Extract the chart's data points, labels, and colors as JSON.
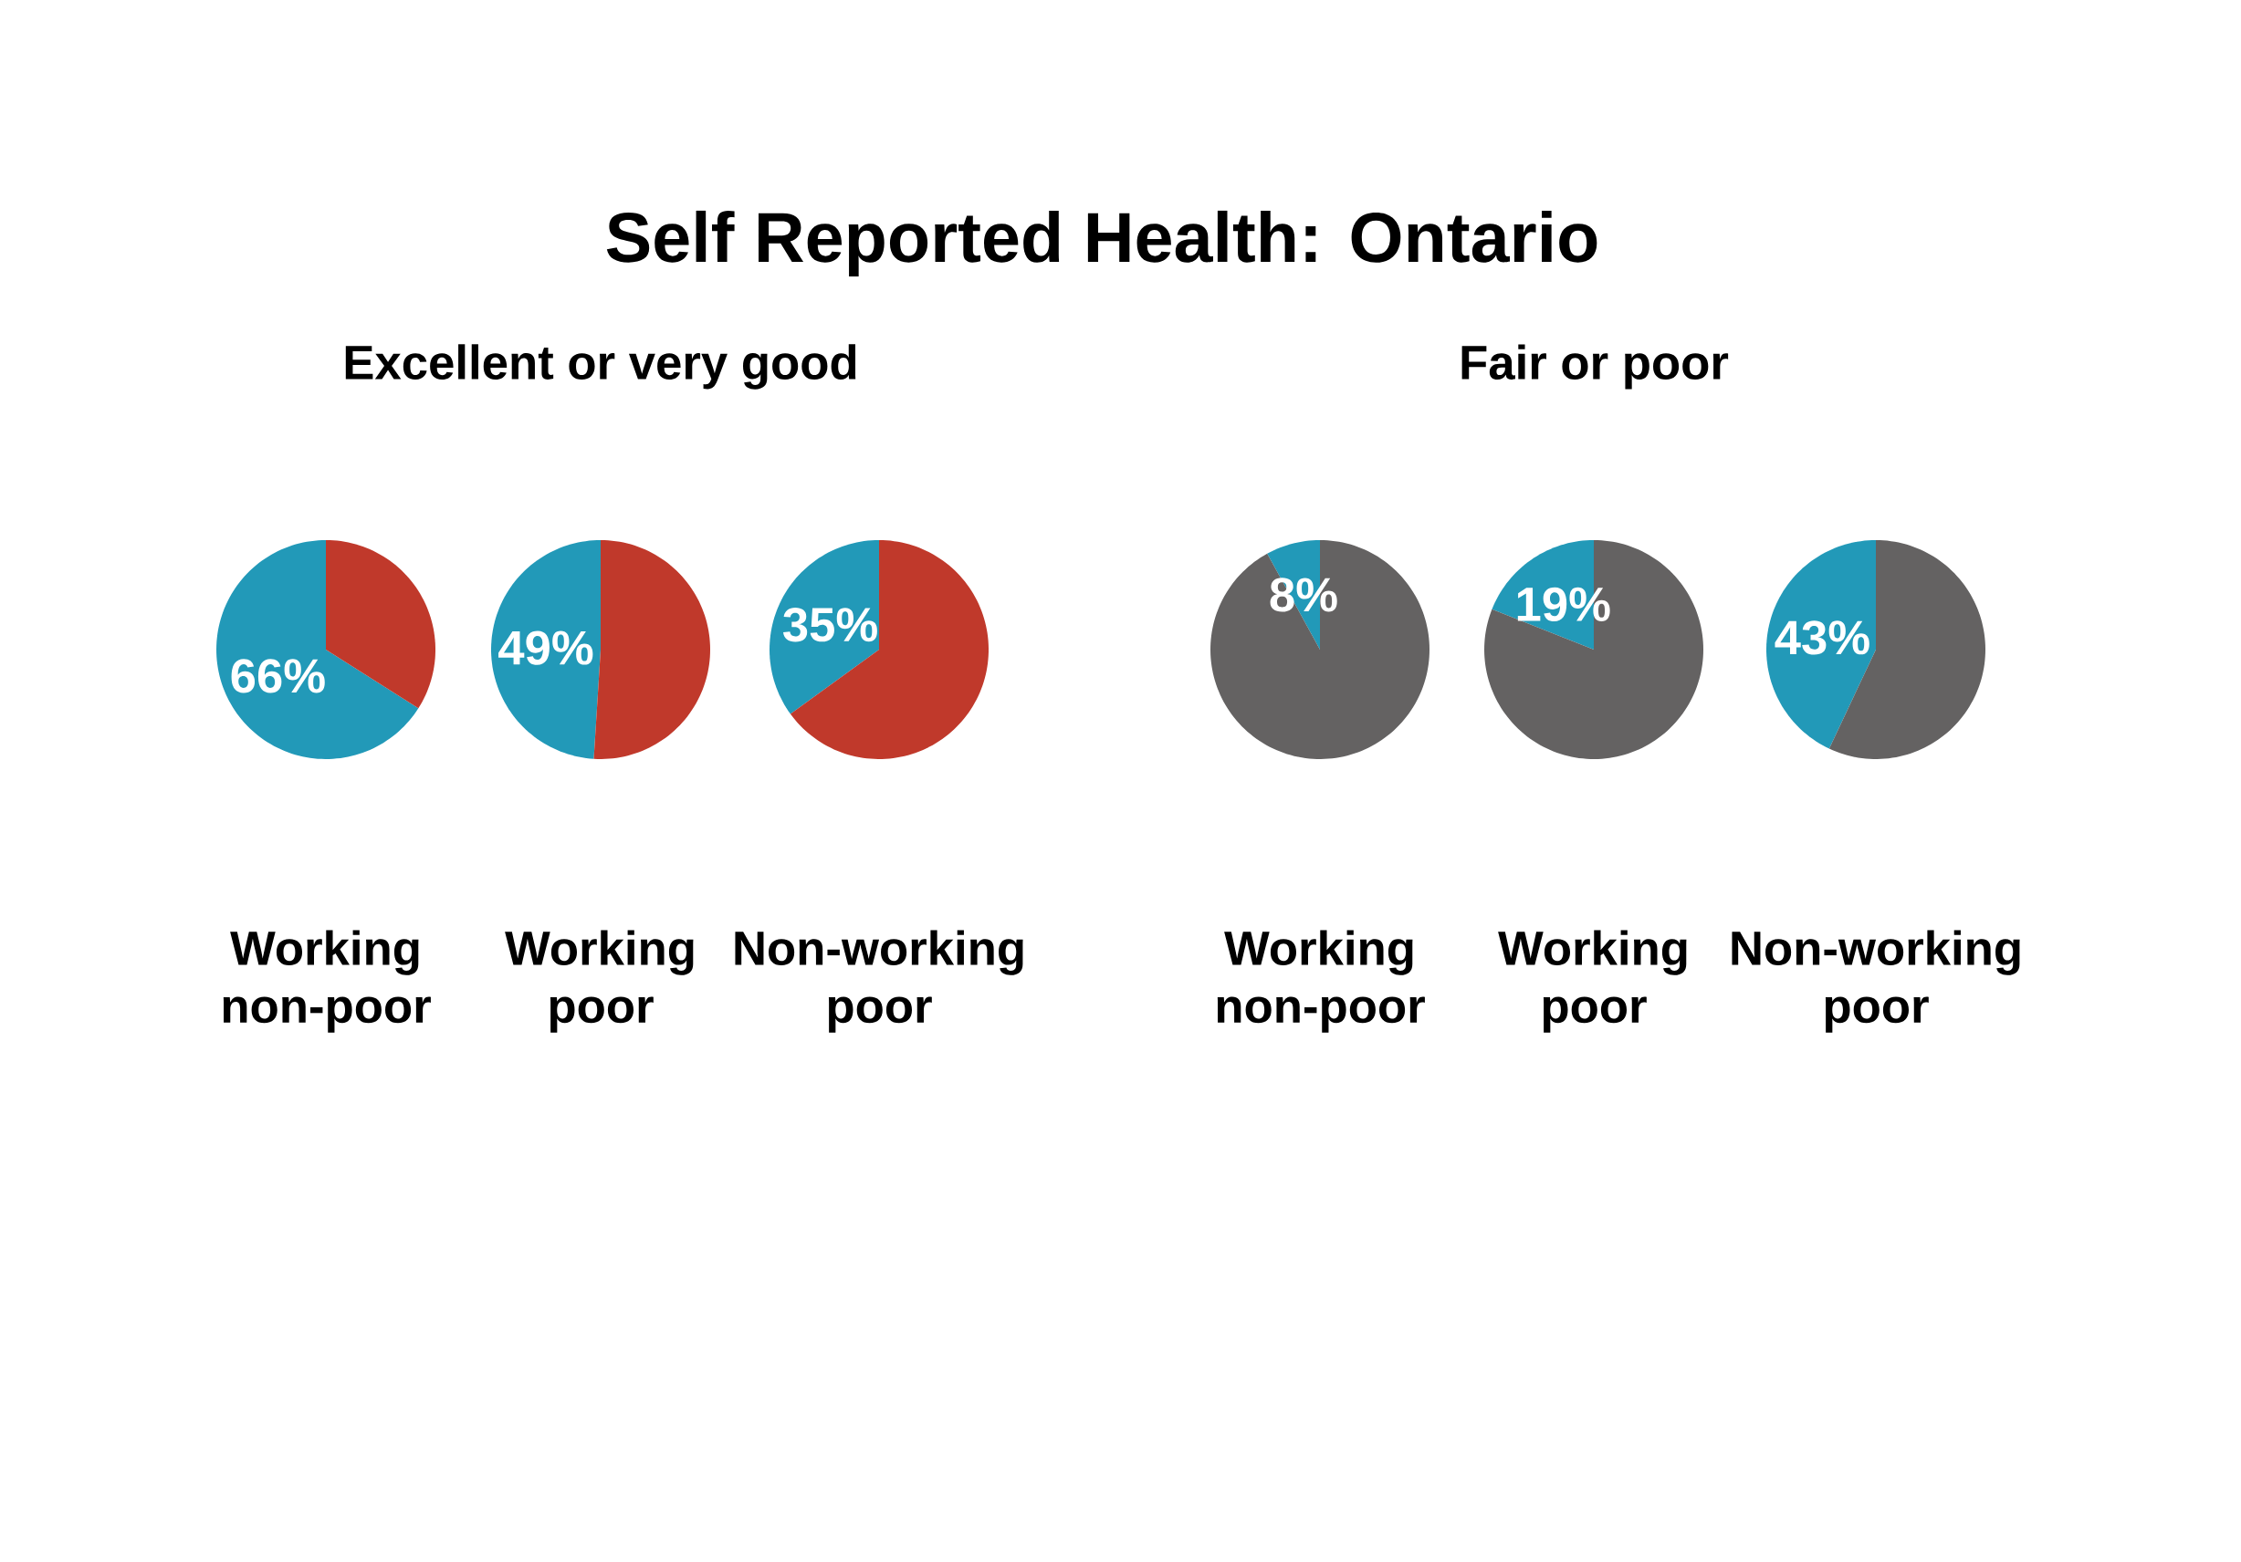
{
  "chart_data": [
    {
      "type": "pie",
      "title": "Self Reported Health: Ontario",
      "xlabel": "Working non-poor",
      "categories": [
        null,
        null
      ],
      "values": [
        66,
        34
      ],
      "colors": [
        "#2299b8",
        "#c0392b"
      ],
      "value_labels": [
        "66%",
        null
      ]
    },
    {
      "type": "pie",
      "subtitle": "Excellent or very good",
      "xlabel": "Working poor",
      "categories": [
        null,
        null
      ],
      "values": [
        49,
        51
      ],
      "colors": [
        "#2299b8",
        "#c0392b"
      ],
      "value_labels": [
        "49%",
        null
      ]
    },
    {
      "type": "pie",
      "xlabel": "Non-working poor",
      "categories": [
        null,
        null
      ],
      "values": [
        35,
        65
      ],
      "colors": [
        "#2299b8",
        "#c0392b"
      ],
      "value_labels": [
        "35%",
        null
      ]
    },
    {
      "type": "pie",
      "xlabel": "Working non-poor",
      "categories": [
        null,
        null
      ],
      "values": [
        8,
        92
      ],
      "colors": [
        "#2299b8",
        "#646262"
      ],
      "value_labels": [
        "8%",
        null
      ]
    },
    {
      "type": "pie",
      "subtitle": "Fair or poor",
      "xlabel": "Working poor",
      "categories": [
        null,
        null
      ],
      "values": [
        19,
        81
      ],
      "colors": [
        "#2299b8",
        "#646262"
      ],
      "value_labels": [
        "19%",
        null
      ]
    },
    {
      "type": "pie",
      "xlabel": "Non-working poor",
      "categories": [
        null,
        null
      ],
      "values": [
        43,
        57
      ],
      "colors": [
        "#2299b8",
        "#646262"
      ],
      "value_labels": [
        "43%",
        null
      ]
    }
  ]
}
